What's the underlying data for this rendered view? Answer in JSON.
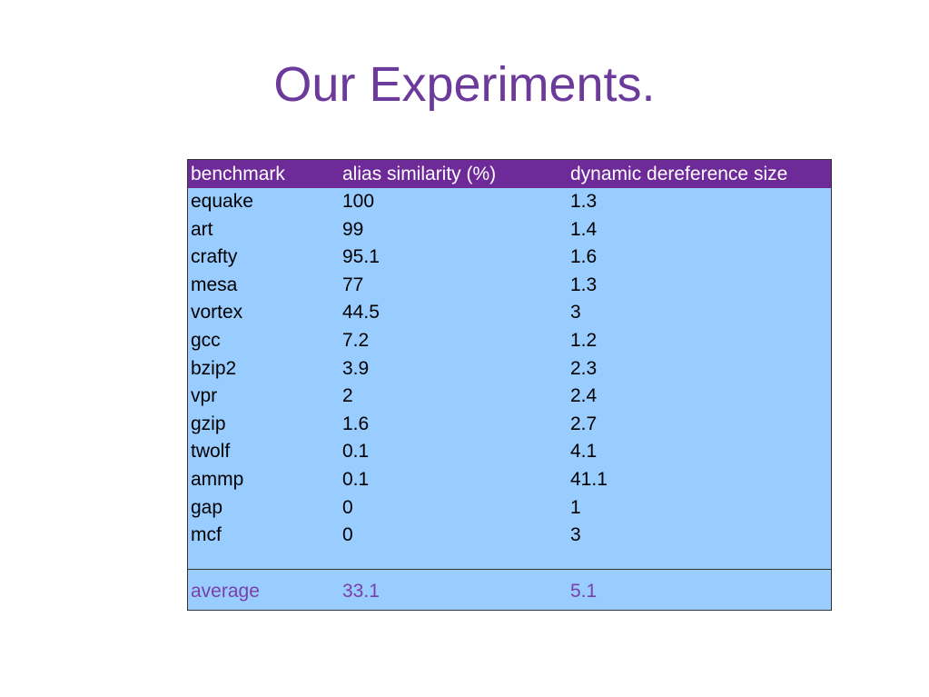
{
  "title": "Our Experiments.",
  "table": {
    "columns": [
      "benchmark",
      "alias similarity (%)",
      "dynamic dereference size"
    ],
    "rows": [
      [
        "equake",
        "100",
        "1.3"
      ],
      [
        "art",
        "99",
        "1.4"
      ],
      [
        "crafty",
        "95.1",
        "1.6"
      ],
      [
        "mesa",
        "77",
        "1.3"
      ],
      [
        "vortex",
        "44.5",
        "3"
      ],
      [
        "gcc",
        "7.2",
        "1.2"
      ],
      [
        "bzip2",
        "3.9",
        "2.3"
      ],
      [
        "vpr",
        "2",
        "2.4"
      ],
      [
        "gzip",
        "1.6",
        "2.7"
      ],
      [
        "twolf",
        "0.1",
        "4.1"
      ],
      [
        "ammp",
        "0.1",
        "41.1"
      ],
      [
        "gap",
        "0",
        "1"
      ],
      [
        "mcf",
        "0",
        "3"
      ]
    ],
    "average": [
      "average",
      "33.1",
      "5.1"
    ]
  },
  "colors": {
    "title": "#6b3a9a",
    "header_bg": "#6e2a98",
    "table_bg": "#99ccff",
    "average_text": "#7a3fa8"
  }
}
